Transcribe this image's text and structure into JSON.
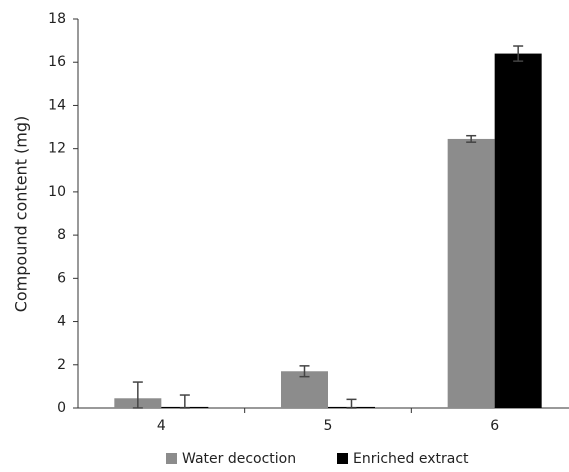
{
  "chart_data": {
    "type": "bar",
    "y_label": "Compound content (mg)",
    "categories": [
      "4",
      "5",
      "6"
    ],
    "series": [
      {
        "name": "Water decoction",
        "color": "#8c8c8c",
        "values": [
          0.45,
          1.7,
          12.45
        ],
        "errors": [
          0.75,
          0.25,
          0.15
        ]
      },
      {
        "name": "Enriched extract",
        "color": "#000000",
        "values": [
          0.05,
          0.05,
          16.4
        ],
        "errors": [
          0.55,
          0.35,
          0.35
        ]
      }
    ],
    "ylim": [
      0,
      18
    ],
    "yticks": [
      0,
      2,
      4,
      6,
      8,
      10,
      12,
      14,
      16,
      18
    ],
    "legend": "bottom"
  }
}
